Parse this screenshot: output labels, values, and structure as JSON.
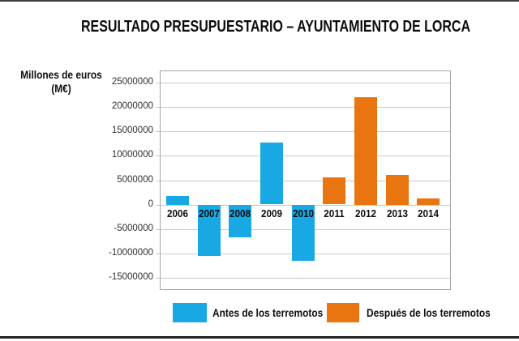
{
  "page": {
    "title": "RESULTADO PRESUPUESTARIO – AYUNTAMIENTO DE LORCA",
    "y_axis_label_line1": "Millones de euros",
    "y_axis_label_line2": "(M€)"
  },
  "colors": {
    "before": "#18A8E3",
    "after": "#E8750F",
    "gridline": "#C9C9C9",
    "plot_border": "#A6A6A6"
  },
  "legend": {
    "before": {
      "label": "Antes de los terremotos",
      "color": "#18A8E3"
    },
    "after": {
      "label": "Después de los terremotos",
      "color": "#E8750F"
    }
  },
  "chart_data": {
    "type": "bar",
    "title": "RESULTADO PRESUPUESTARIO – AYUNTAMIENTO DE LORCA",
    "xlabel": "",
    "ylabel": "Millones de euros (M€)",
    "categories": [
      "2006",
      "2007",
      "2008",
      "2009",
      "2010",
      "2011",
      "2012",
      "2013",
      "2014"
    ],
    "series": [
      {
        "name": "Antes de los terremotos",
        "color": "#18A8E3",
        "values": [
          1800000,
          -10400000,
          -6700000,
          12700000,
          -11500000,
          null,
          null,
          null,
          null
        ]
      },
      {
        "name": "Después de los terremotos",
        "color": "#E8750F",
        "values": [
          null,
          null,
          null,
          null,
          null,
          5500000,
          22100000,
          6100000,
          1300000
        ]
      }
    ],
    "yticks": [
      25000000,
      20000000,
      15000000,
      10000000,
      5000000,
      0,
      -5000000,
      -10000000,
      -15000000
    ],
    "ylim": [
      -17500000,
      27500000
    ],
    "grid": true,
    "legend_position": "bottom"
  }
}
